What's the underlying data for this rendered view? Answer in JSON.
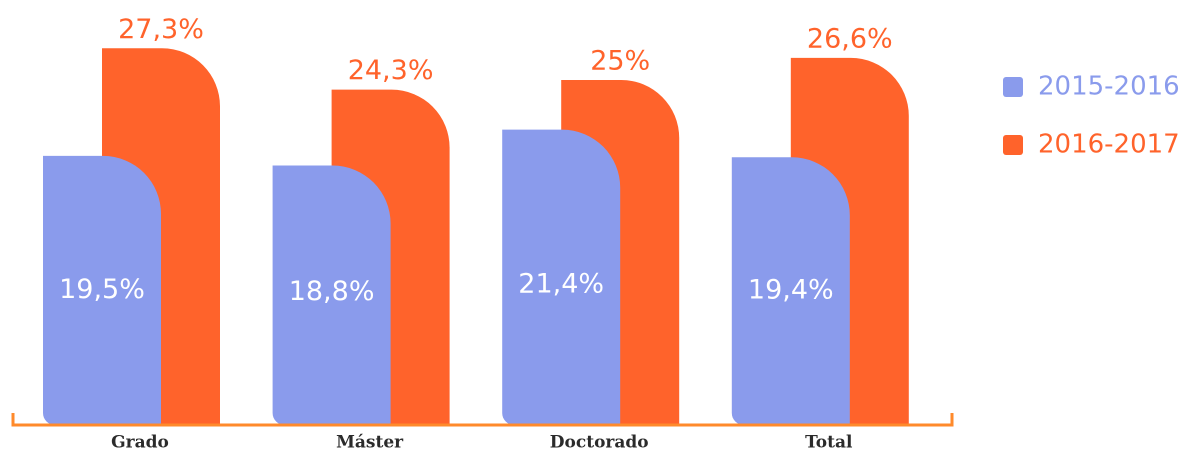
{
  "chart_data": {
    "type": "bar",
    "categories": [
      "Grado",
      "Máster",
      "Doctorado",
      "Total"
    ],
    "series": [
      {
        "name": "2015-2016",
        "color": "#8a9bec",
        "values": [
          19.5,
          18.8,
          21.4,
          19.4
        ],
        "value_labels": [
          "19,5%",
          "18,8%",
          "21,4%",
          "19,4%"
        ]
      },
      {
        "name": "2016-2017",
        "color": "#ff632b",
        "values": [
          27.3,
          24.3,
          25,
          26.6
        ],
        "value_labels": [
          "27,3%",
          "24,3%",
          "25%",
          "26,6%"
        ]
      }
    ],
    "legend": "right"
  }
}
